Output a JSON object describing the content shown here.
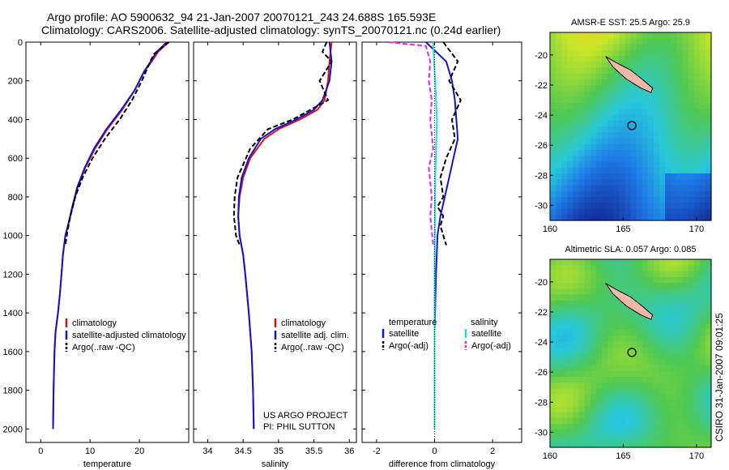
{
  "header": {
    "line1": "Argo profile: AO 5900632_94 21-Jan-2007 20070121_243 24.688S 165.593E",
    "line2": "Climatology: CARS2006. Satellite-adjusted climatology: synTS_20070121.nc (0.24d earlier)"
  },
  "chart_data": [
    {
      "type": "line",
      "name": "temperature",
      "xlabel": "temperature",
      "xlim": [
        -3,
        30
      ],
      "ylim": [
        0,
        2070
      ],
      "y_reversed": true,
      "xticks": [
        0,
        10,
        20
      ],
      "yticks": [
        0,
        200,
        400,
        600,
        800,
        1000,
        1200,
        1400,
        1600,
        1800,
        2000
      ],
      "legend": [
        "climatology",
        "satellite-adjusted climatology",
        "Argo(..raw -QC)"
      ],
      "series": [
        {
          "name": "climatology",
          "color": "#dd1111",
          "dash": "",
          "x": [
            25.9,
            23.8,
            22.5,
            21,
            19,
            16.5,
            13.5,
            11,
            9,
            7.5,
            6.5,
            5.5,
            5,
            4.5,
            4.2,
            3.9,
            3.5,
            3,
            2.8,
            2.6,
            2.5
          ],
          "y": [
            0,
            50,
            100,
            150,
            250,
            350,
            450,
            550,
            650,
            750,
            850,
            950,
            1000,
            1100,
            1200,
            1300,
            1400,
            1500,
            1600,
            1800,
            2000
          ]
        },
        {
          "name": "satellite-adjusted climatology",
          "color": "#1414cc",
          "dash": "",
          "x": [
            25.6,
            23.5,
            22.3,
            21,
            19,
            16.3,
            13.3,
            10.8,
            8.9,
            7.4,
            6.4,
            5.5,
            5,
            4.5,
            4.2,
            3.9,
            3.5,
            3,
            2.8,
            2.6,
            2.5
          ],
          "y": [
            0,
            50,
            100,
            150,
            250,
            350,
            450,
            550,
            650,
            750,
            850,
            950,
            1000,
            1100,
            1200,
            1300,
            1400,
            1500,
            1600,
            1800,
            2000
          ]
        },
        {
          "name": "Argo(..raw -QC)",
          "color": "#000000",
          "dash": "6,3",
          "x": [
            26,
            25,
            23,
            22.2,
            20.5,
            18.5,
            16,
            13,
            10.5,
            8.5,
            7,
            6,
            5.4,
            5
          ],
          "y": [
            0,
            20,
            60,
            100,
            200,
            300,
            400,
            500,
            600,
            700,
            800,
            900,
            980,
            1050
          ]
        }
      ]
    },
    {
      "type": "line",
      "name": "salinity",
      "xlabel": "salinity",
      "xlim": [
        33.8,
        36.1
      ],
      "ylim": [
        0,
        2070
      ],
      "y_reversed": true,
      "xticks": [
        34,
        34.5,
        35,
        35.5,
        36
      ],
      "legend": [
        "climatology",
        "satellite adj. clim.",
        "Argo(..raw -QC)"
      ],
      "series": [
        {
          "name": "climatology",
          "color": "#dd1111",
          "dash": "",
          "x": [
            35.75,
            35.72,
            35.7,
            35.65,
            35.55,
            35.3,
            35,
            34.8,
            34.6,
            34.5,
            34.45,
            34.43,
            34.45,
            34.5,
            34.53,
            34.58,
            34.62,
            34.64,
            34.65
          ],
          "y": [
            0,
            100,
            200,
            300,
            350,
            400,
            450,
            500,
            600,
            700,
            800,
            900,
            1000,
            1100,
            1200,
            1400,
            1600,
            1800,
            2000
          ]
        },
        {
          "name": "satellite adj. clim.",
          "color": "#1414cc",
          "dash": "",
          "x": [
            35.72,
            35.75,
            35.72,
            35.62,
            35.5,
            35.25,
            34.95,
            34.75,
            34.58,
            34.48,
            34.44,
            34.43,
            34.45,
            34.5,
            34.53,
            34.58,
            34.62,
            34.64,
            34.65
          ],
          "y": [
            0,
            100,
            200,
            300,
            350,
            400,
            450,
            500,
            600,
            700,
            800,
            900,
            1000,
            1100,
            1200,
            1400,
            1600,
            1800,
            2000
          ]
        },
        {
          "name": "Argo(..raw -QC)",
          "color": "#000000",
          "dash": "6,3",
          "x": [
            35.68,
            35.62,
            35.75,
            35.58,
            35.7,
            35.45,
            35.2,
            34.85,
            34.6,
            34.42,
            34.38,
            34.37,
            34.4,
            34.45
          ],
          "y": [
            0,
            50,
            100,
            200,
            300,
            350,
            400,
            450,
            550,
            700,
            800,
            900,
            1000,
            1050
          ]
        }
      ]
    },
    {
      "type": "line",
      "name": "difference",
      "xlabel": "difference from climatology",
      "xlim": [
        -2.5,
        3
      ],
      "ylim": [
        0,
        2070
      ],
      "y_reversed": true,
      "xticks": [
        -2,
        0,
        2
      ],
      "legend_groups": [
        {
          "title": "temperature",
          "items": [
            "satellite",
            "Argo(-adj)"
          ]
        },
        {
          "title": "salinity",
          "items": [
            "satellite",
            "Argo(-adj)"
          ]
        }
      ],
      "series": [
        {
          "name": "temperature satellite",
          "color": "#1414cc",
          "dash": "",
          "x": [
            -0.3,
            0.4,
            0.6,
            0.7,
            0.75,
            0.8,
            0.65,
            0.5,
            0.35,
            0.2,
            0.1,
            0.05,
            0,
            0
          ],
          "y": [
            0,
            100,
            200,
            300,
            400,
            500,
            600,
            700,
            800,
            900,
            1000,
            1200,
            1500,
            2000
          ]
        },
        {
          "name": "temperature Argo(-adj)",
          "color": "#000000",
          "dash": "6,3",
          "x": [
            0.3,
            0.8,
            0.5,
            0.9,
            0.6,
            0.7,
            0.4,
            0.2,
            0.3,
            0.1,
            0.3,
            0.2,
            0.4
          ],
          "y": [
            0,
            100,
            200,
            300,
            400,
            500,
            600,
            700,
            800,
            850,
            900,
            950,
            1050
          ]
        },
        {
          "name": "salinity satellite",
          "color": "#22dddd",
          "dash": "",
          "x": [
            -0.05,
            -0.02,
            0.02,
            0.05,
            0.08,
            0.06,
            0.04,
            0.02,
            0.01,
            0,
            0
          ],
          "y": [
            0,
            100,
            200,
            300,
            400,
            500,
            600,
            700,
            900,
            1200,
            2000
          ]
        },
        {
          "name": "salinity Argo(-adj)",
          "color": "#ee22ee",
          "dash": "6,3",
          "x": [
            -1.6,
            -0.3,
            -0.15,
            -0.2,
            -0.1,
            -0.15,
            -0.05,
            -0.2,
            -0.1,
            -0.15,
            -0.05
          ],
          "y": [
            0,
            20,
            100,
            200,
            300,
            400,
            550,
            650,
            800,
            900,
            1050
          ]
        }
      ]
    }
  ],
  "maps": [
    {
      "title": "AMSR-E SST: 25.5 Argo: 25.9",
      "xticks": [
        160,
        165,
        170
      ],
      "yticks": [
        -20,
        -22,
        -24,
        -26,
        -28,
        -30
      ],
      "lon_range": [
        160,
        171
      ],
      "lat_range": [
        -31,
        -18.5
      ],
      "marker": [
        165.59,
        -24.69
      ],
      "kind": "sst"
    },
    {
      "title": "Altimetric SLA: 0.057 Argo: 0.085",
      "xticks": [
        160,
        165,
        170
      ],
      "yticks": [
        -20,
        -22,
        -24,
        -26,
        -28,
        -30
      ],
      "lon_range": [
        160,
        171
      ],
      "lat_range": [
        -31,
        -18.5
      ],
      "marker": [
        165.59,
        -24.69
      ],
      "kind": "sla"
    }
  ],
  "credits": {
    "project": "US ARGO PROJECT",
    "pi": "PI: PHIL SUTTON",
    "stamp": "CSIRO 31-Jan-2007 09:01:25"
  }
}
